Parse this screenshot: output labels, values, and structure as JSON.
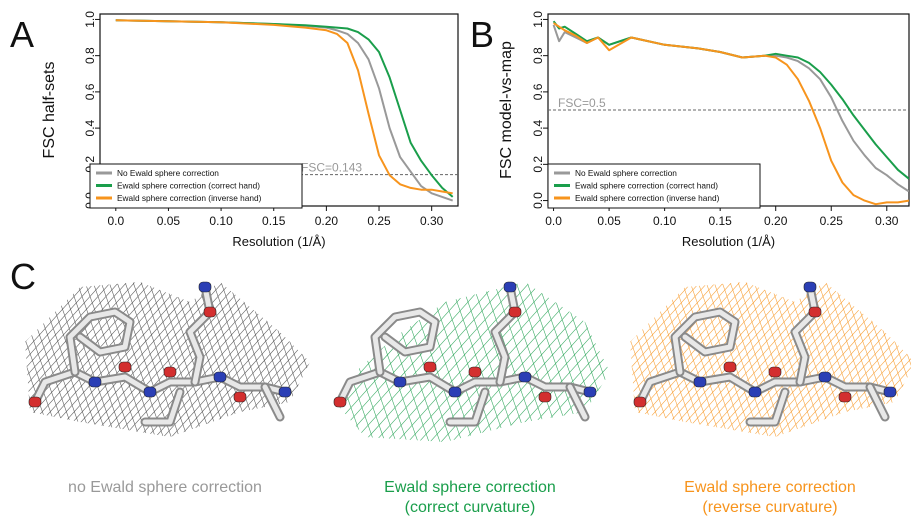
{
  "panels": {
    "a": {
      "letter": "A"
    },
    "b": {
      "letter": "B"
    },
    "c": {
      "letter": "C"
    }
  },
  "colors": {
    "none": "#999999",
    "correct": "#1a9e4b",
    "inverse": "#f7941d",
    "threshold": "#666666"
  },
  "chart_data": [
    {
      "type": "line",
      "id": "A",
      "xlabel": "Resolution (1/Å)",
      "ylabel": "FSC half-sets",
      "xlim": [
        -0.015,
        0.325
      ],
      "ylim": [
        -0.03,
        1.03
      ],
      "xticks": [
        "0.0",
        "0.05",
        "0.10",
        "0.15",
        "0.20",
        "0.25",
        "0.30"
      ],
      "xtick_values": [
        0.0,
        0.05,
        0.1,
        0.15,
        0.2,
        0.25,
        0.3
      ],
      "yticks": [
        "0.0",
        "0.2",
        "0.4",
        "0.6",
        "0.8",
        "1.0"
      ],
      "ytick_values": [
        0.0,
        0.2,
        0.4,
        0.6,
        0.8,
        1.0
      ],
      "threshold": {
        "y": 0.143,
        "label": "FSC=0.143"
      },
      "legend_position": "bottom-left",
      "series": [
        {
          "name": "No Ewald sphere correction",
          "color_key": "none",
          "x": [
            0.0,
            0.05,
            0.1,
            0.15,
            0.18,
            0.2,
            0.21,
            0.22,
            0.23,
            0.24,
            0.25,
            0.26,
            0.27,
            0.28,
            0.29,
            0.3,
            0.31,
            0.32
          ],
          "y": [
            0.995,
            0.99,
            0.985,
            0.975,
            0.965,
            0.955,
            0.94,
            0.92,
            0.87,
            0.78,
            0.62,
            0.4,
            0.24,
            0.16,
            0.08,
            0.04,
            0.02,
            0.0
          ]
        },
        {
          "name": "Ewald sphere correction (correct hand)",
          "color_key": "correct",
          "x": [
            0.0,
            0.05,
            0.1,
            0.15,
            0.18,
            0.2,
            0.21,
            0.22,
            0.23,
            0.24,
            0.25,
            0.26,
            0.27,
            0.28,
            0.29,
            0.3,
            0.31,
            0.32
          ],
          "y": [
            0.995,
            0.99,
            0.985,
            0.975,
            0.968,
            0.96,
            0.955,
            0.95,
            0.93,
            0.89,
            0.82,
            0.68,
            0.5,
            0.32,
            0.22,
            0.14,
            0.07,
            0.02
          ]
        },
        {
          "name": "Ewald sphere correction (inverse hand)",
          "color_key": "inverse",
          "x": [
            0.0,
            0.05,
            0.1,
            0.15,
            0.18,
            0.2,
            0.21,
            0.22,
            0.23,
            0.24,
            0.25,
            0.26,
            0.27,
            0.28,
            0.29,
            0.3,
            0.31,
            0.32
          ],
          "y": [
            0.995,
            0.99,
            0.985,
            0.97,
            0.955,
            0.94,
            0.92,
            0.87,
            0.72,
            0.48,
            0.25,
            0.14,
            0.09,
            0.07,
            0.06,
            0.06,
            0.05,
            0.04
          ]
        }
      ]
    },
    {
      "type": "line",
      "id": "B",
      "xlabel": "Resolution (1/Å)",
      "ylabel": "FSC model-vs-map",
      "xlim": [
        -0.005,
        0.32
      ],
      "ylim": [
        -0.03,
        1.03
      ],
      "xticks": [
        "0.0",
        "0.05",
        "0.10",
        "0.15",
        "0.20",
        "0.25",
        "0.30"
      ],
      "xtick_values": [
        0.0,
        0.05,
        0.1,
        0.15,
        0.2,
        0.25,
        0.3
      ],
      "yticks": [
        "0.0",
        "0.2",
        "0.4",
        "0.6",
        "0.8",
        "1.0"
      ],
      "ytick_values": [
        0.0,
        0.2,
        0.4,
        0.6,
        0.8,
        1.0
      ],
      "threshold": {
        "y": 0.5,
        "label": "FSC=0.5"
      },
      "legend_position": "bottom-left",
      "series": [
        {
          "name": "No Ewald sphere correction",
          "color_key": "none",
          "x": [
            0.0,
            0.005,
            0.01,
            0.02,
            0.03,
            0.04,
            0.05,
            0.07,
            0.1,
            0.13,
            0.15,
            0.17,
            0.19,
            0.2,
            0.21,
            0.22,
            0.23,
            0.24,
            0.25,
            0.26,
            0.27,
            0.28,
            0.29,
            0.3,
            0.31,
            0.32
          ],
          "y": [
            0.97,
            0.88,
            0.93,
            0.9,
            0.87,
            0.9,
            0.86,
            0.9,
            0.86,
            0.84,
            0.82,
            0.79,
            0.8,
            0.8,
            0.79,
            0.77,
            0.73,
            0.67,
            0.57,
            0.44,
            0.33,
            0.25,
            0.18,
            0.14,
            0.09,
            0.05
          ]
        },
        {
          "name": "Ewald sphere correction (correct hand)",
          "color_key": "correct",
          "x": [
            0.0,
            0.005,
            0.01,
            0.02,
            0.03,
            0.04,
            0.05,
            0.07,
            0.1,
            0.13,
            0.15,
            0.17,
            0.19,
            0.2,
            0.21,
            0.22,
            0.23,
            0.24,
            0.25,
            0.26,
            0.27,
            0.28,
            0.29,
            0.3,
            0.31,
            0.32
          ],
          "y": [
            0.99,
            0.95,
            0.96,
            0.92,
            0.88,
            0.9,
            0.86,
            0.9,
            0.86,
            0.84,
            0.82,
            0.79,
            0.8,
            0.81,
            0.8,
            0.79,
            0.76,
            0.71,
            0.64,
            0.56,
            0.47,
            0.39,
            0.31,
            0.24,
            0.17,
            0.12
          ]
        },
        {
          "name": "Ewald sphere correction (inverse hand)",
          "color_key": "inverse",
          "x": [
            0.0,
            0.005,
            0.01,
            0.02,
            0.03,
            0.04,
            0.05,
            0.07,
            0.1,
            0.13,
            0.15,
            0.17,
            0.19,
            0.2,
            0.21,
            0.22,
            0.23,
            0.24,
            0.25,
            0.26,
            0.27,
            0.28,
            0.29,
            0.3,
            0.31,
            0.32
          ],
          "y": [
            0.98,
            0.96,
            0.94,
            0.91,
            0.87,
            0.9,
            0.83,
            0.9,
            0.86,
            0.84,
            0.82,
            0.79,
            0.8,
            0.79,
            0.75,
            0.67,
            0.55,
            0.4,
            0.22,
            0.1,
            0.03,
            0.0,
            -0.02,
            -0.01,
            -0.01,
            0.0
          ]
        }
      ]
    }
  ],
  "captions": [
    {
      "lines": [
        "no Ewald sphere correction"
      ],
      "color_key": "none"
    },
    {
      "lines": [
        "Ewald sphere correction",
        "(correct curvature)"
      ],
      "color_key": "correct"
    },
    {
      "lines": [
        "Ewald sphere correction",
        "(reverse curvature)"
      ],
      "color_key": "inverse"
    }
  ]
}
